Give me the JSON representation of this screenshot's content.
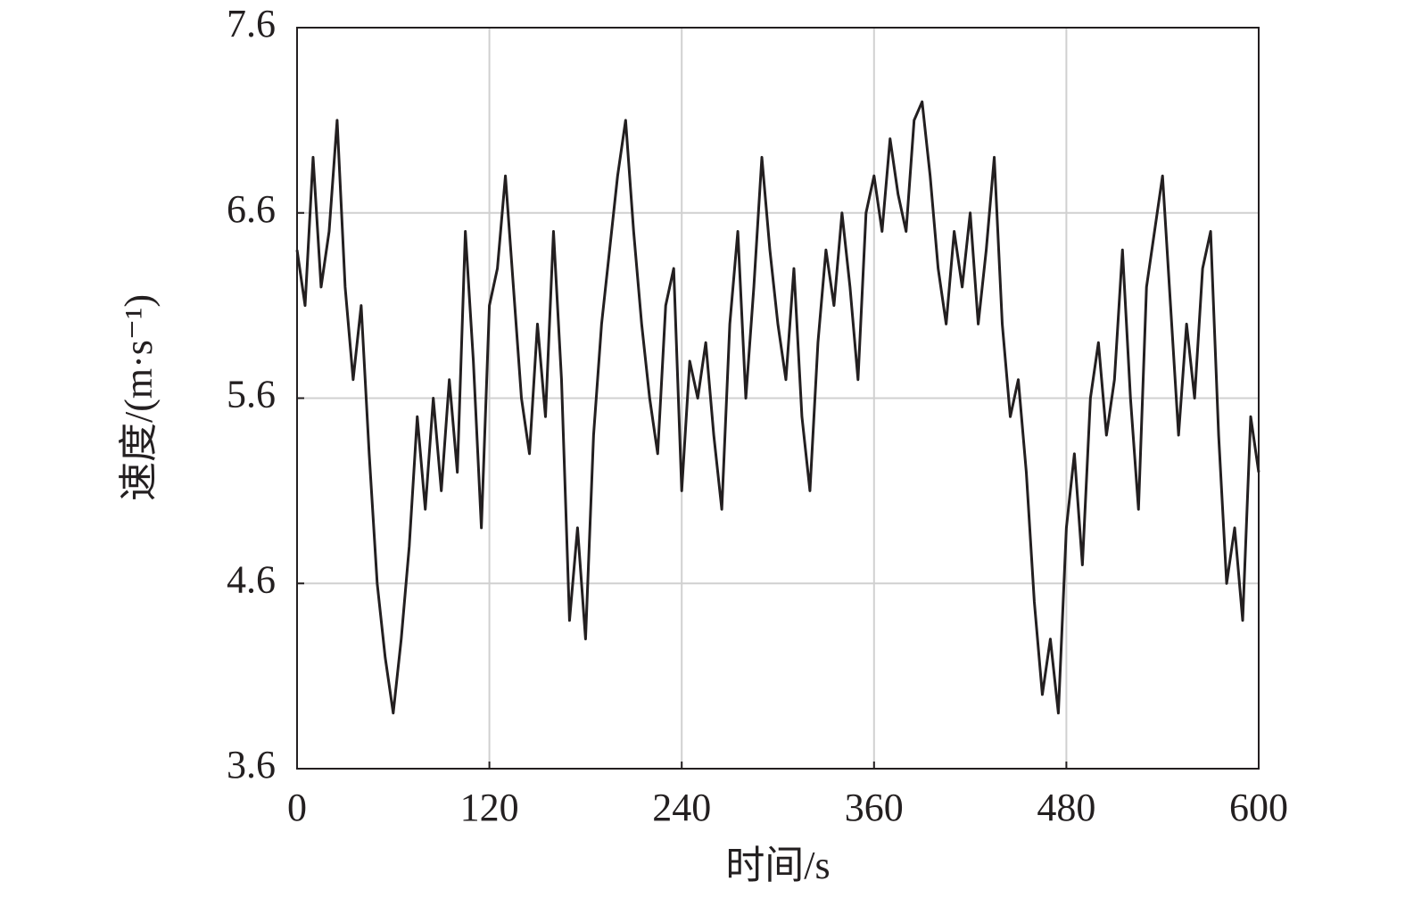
{
  "chart_data": {
    "type": "line",
    "xlabel": "时间/s",
    "ylabel": "速度/(m·s⁻¹)",
    "x": [
      0,
      5,
      10,
      15,
      20,
      25,
      30,
      35,
      40,
      45,
      50,
      55,
      60,
      65,
      70,
      75,
      80,
      85,
      90,
      95,
      100,
      105,
      110,
      115,
      120,
      125,
      130,
      135,
      140,
      145,
      150,
      155,
      160,
      165,
      170,
      175,
      180,
      185,
      190,
      195,
      200,
      205,
      210,
      215,
      220,
      225,
      230,
      235,
      240,
      245,
      250,
      255,
      260,
      265,
      270,
      275,
      280,
      285,
      290,
      295,
      300,
      305,
      310,
      315,
      320,
      325,
      330,
      335,
      340,
      345,
      350,
      355,
      360,
      365,
      370,
      375,
      380,
      385,
      390,
      395,
      400,
      405,
      410,
      415,
      420,
      425,
      430,
      435,
      440,
      445,
      450,
      455,
      460,
      465,
      470,
      475,
      480,
      485,
      490,
      495,
      500,
      505,
      510,
      515,
      520,
      525,
      530,
      535,
      540,
      545,
      550,
      555,
      560,
      565,
      570,
      575,
      580,
      585,
      590,
      595,
      600
    ],
    "series": [
      {
        "color": "#231f20",
        "values": [
          6.4,
          6.1,
          6.9,
          6.2,
          6.5,
          7.1,
          6.2,
          5.7,
          6.1,
          5.3,
          4.6,
          4.2,
          3.9,
          4.3,
          4.8,
          5.5,
          5.0,
          5.6,
          5.1,
          5.7,
          5.2,
          6.5,
          5.8,
          4.9,
          6.1,
          6.3,
          6.8,
          6.2,
          5.6,
          5.3,
          6.0,
          5.5,
          6.5,
          5.7,
          4.4,
          4.9,
          4.3,
          5.4,
          6.0,
          6.4,
          6.8,
          7.1,
          6.5,
          6.0,
          5.6,
          5.3,
          6.1,
          6.3,
          5.1,
          5.8,
          5.6,
          5.9,
          5.4,
          5.0,
          6.0,
          6.5,
          5.6,
          6.2,
          6.9,
          6.4,
          6.0,
          5.7,
          6.3,
          5.5,
          5.1,
          5.9,
          6.4,
          6.1,
          6.6,
          6.2,
          5.7,
          6.6,
          6.8,
          6.5,
          7.0,
          6.7,
          6.5,
          7.1,
          7.2,
          6.8,
          6.3,
          6.0,
          6.5,
          6.2,
          6.6,
          6.0,
          6.4,
          6.9,
          6.0,
          5.5,
          5.7,
          5.2,
          4.5,
          4.0,
          4.3,
          3.9,
          4.9,
          5.3,
          4.7,
          5.6,
          5.9,
          5.4,
          5.7,
          6.4,
          5.6,
          5.0,
          6.2,
          6.5,
          6.8,
          6.1,
          5.4,
          6.0,
          5.6,
          6.3,
          6.5,
          5.4,
          4.6,
          4.9,
          4.4,
          5.5,
          5.2
        ]
      }
    ],
    "xlim": [
      0,
      600
    ],
    "xticks": [
      0,
      120,
      240,
      360,
      480,
      600
    ],
    "ylim": [
      3.6,
      7.6
    ],
    "yticks": [
      3.6,
      4.6,
      5.6,
      6.6,
      7.6
    ],
    "grid": true
  }
}
